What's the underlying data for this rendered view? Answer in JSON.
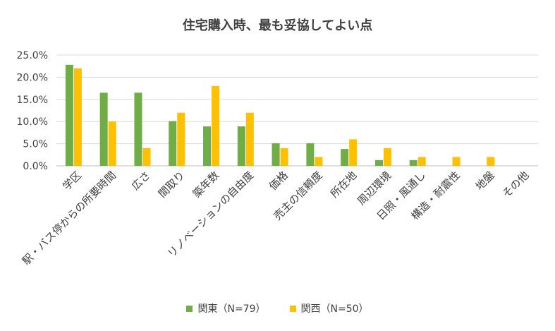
{
  "chart_data": {
    "type": "bar",
    "title": "住宅購入時、最も妥協してよい点",
    "categories": [
      "学区",
      "駅・バス停からの所要時間",
      "広さ",
      "間取り",
      "築年数",
      "リノベーションの自由度",
      "価格",
      "売主の信頼度",
      "所在地",
      "周辺環境",
      "日照・風通し",
      "構造・耐震性",
      "地盤",
      "その他"
    ],
    "series": [
      {
        "name": "関東（N=79）",
        "color": "#70AD47",
        "values": [
          22.8,
          16.5,
          16.5,
          10.1,
          8.9,
          8.9,
          5.1,
          5.1,
          3.8,
          1.3,
          1.3,
          0,
          0,
          0
        ]
      },
      {
        "name": "関西（N=50）",
        "color": "#FFC000",
        "values": [
          22.0,
          10.0,
          4.0,
          12.0,
          18.0,
          12.0,
          4.0,
          2.0,
          6.0,
          4.0,
          2.0,
          2.0,
          2.0,
          0
        ]
      }
    ],
    "ylim": [
      0,
      25
    ],
    "yticks": [
      "0.0%",
      "5.0%",
      "10.0%",
      "15.0%",
      "20.0%",
      "25.0%"
    ],
    "grid": true,
    "legend_position": "bottom"
  }
}
